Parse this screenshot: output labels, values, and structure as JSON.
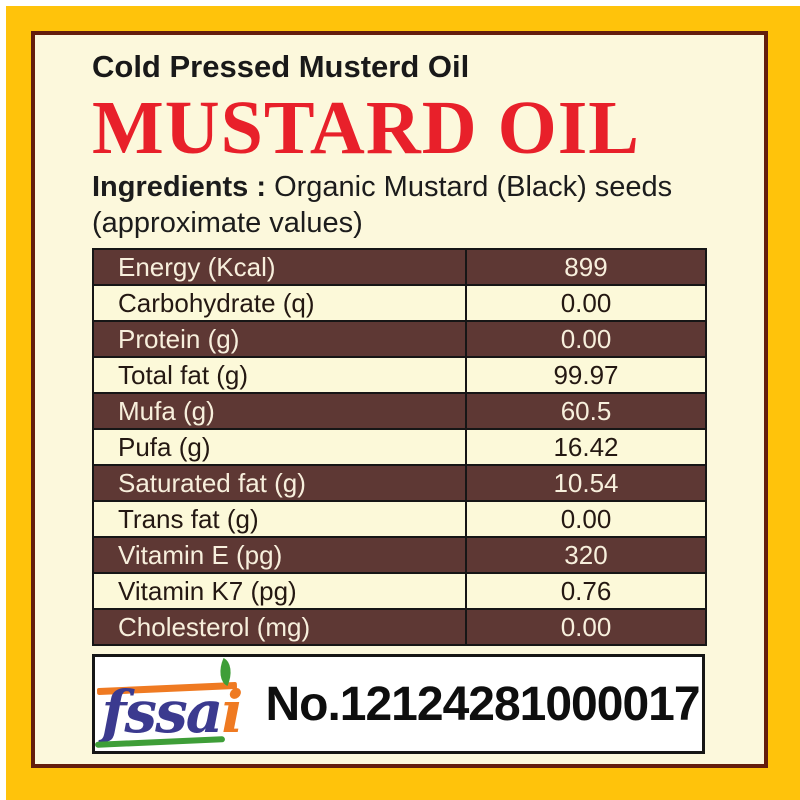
{
  "label": {
    "subtitle": "Cold Pressed Musterd Oil",
    "title": "MUSTARD OIL",
    "ingredients_label": "Ingredients :",
    "ingredients_value": "Organic Mustard (Black) seeds",
    "approx_note": "(approximate values)"
  },
  "nutrition_table": {
    "rows": [
      {
        "name": "Energy (Kcal)",
        "value": "899"
      },
      {
        "name": "Carbohydrate (q)",
        "value": "0.00"
      },
      {
        "name": "Protein (g)",
        "value": "0.00"
      },
      {
        "name": "Total fat (g)",
        "value": "99.97"
      },
      {
        "name": "Mufa (g)",
        "value": "60.5"
      },
      {
        "name": "Pufa (g)",
        "value": "16.42"
      },
      {
        "name": "Saturated fat (g)",
        "value": "10.54"
      },
      {
        "name": "Trans fat (g)",
        "value": "0.00"
      },
      {
        "name": "Vitamin E (pg)",
        "value": "320"
      },
      {
        "name": "Vitamin K7 (pg)",
        "value": "0.76"
      },
      {
        "name": "Cholesterol (mg)",
        "value": "0.00"
      }
    ]
  },
  "fssai": {
    "logo_text_fssa": "fssa",
    "logo_text_i": "i",
    "license_number": "No.12124281000017"
  },
  "colors": {
    "frame_yellow": "#FFC30B",
    "inner_line_maroon": "#641D0C",
    "background_cream": "#FCF8DC",
    "row_dark_brown": "#5E3834",
    "row_light_cream": "#FCF9D9",
    "title_red": "#E8202A",
    "fssai_blue": "#3B3A8F",
    "fssai_orange": "#EF7A22",
    "fssai_green": "#3E9E38"
  }
}
